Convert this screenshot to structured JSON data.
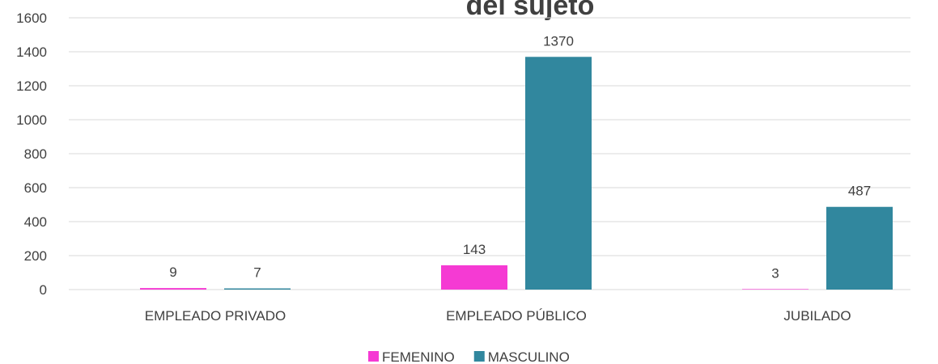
{
  "chart_data": {
    "type": "bar",
    "title": "del sujeto",
    "categories": [
      "EMPLEADO PRIVADO",
      "EMPLEADO PÚBLICO",
      "JUBILADO"
    ],
    "series": [
      {
        "name": "FEMENINO",
        "color": "#f53ad3",
        "values": [
          9,
          143,
          3
        ]
      },
      {
        "name": "MASCULINO",
        "color": "#31879e",
        "values": [
          7,
          1370,
          487
        ]
      }
    ],
    "ylim": [
      0,
      1600
    ],
    "yticks": [
      0,
      200,
      400,
      600,
      800,
      1000,
      1200,
      1400,
      1600
    ],
    "grid": true,
    "legend": "bottom"
  }
}
